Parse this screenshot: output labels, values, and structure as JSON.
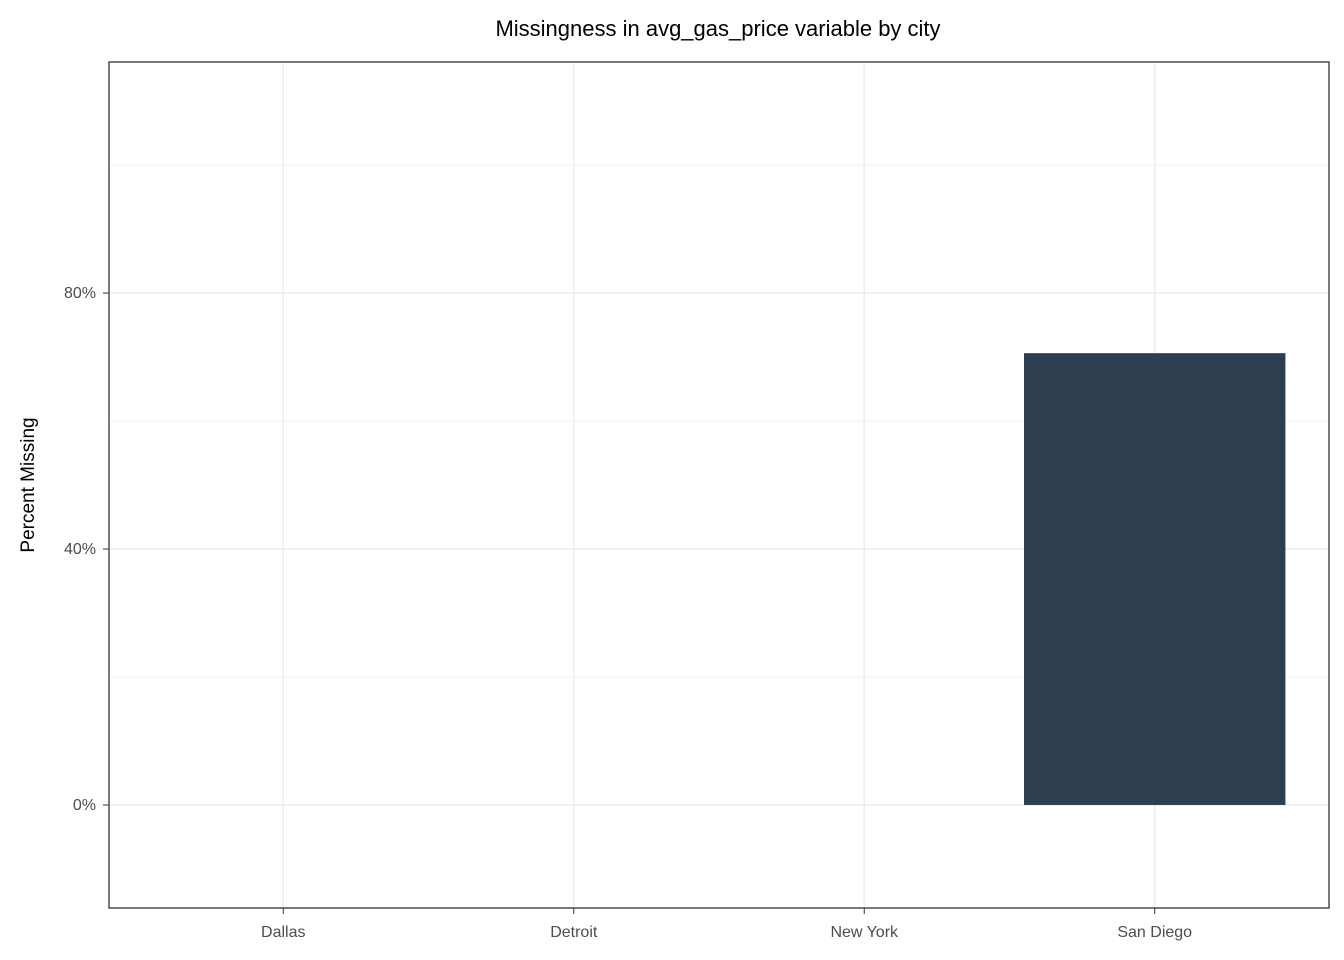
{
  "chart_data": {
    "type": "bar",
    "title": "Missingness in avg_gas_price variable by city",
    "y_label": "Percent Missing",
    "categories": [
      "Dallas",
      "Detroit",
      "New York",
      "San Diego"
    ],
    "values": [
      0,
      0,
      0,
      70.6
    ],
    "color": "#2d3e50",
    "ylim": [
      -16.1,
      116.1
    ],
    "yticks": [
      {
        "value": 0,
        "label": "0%"
      },
      {
        "value": 40,
        "label": "40%"
      },
      {
        "value": 80,
        "label": "80%"
      }
    ],
    "y_minor_gridlines": [
      20,
      60,
      100
    ],
    "grid": true
  }
}
